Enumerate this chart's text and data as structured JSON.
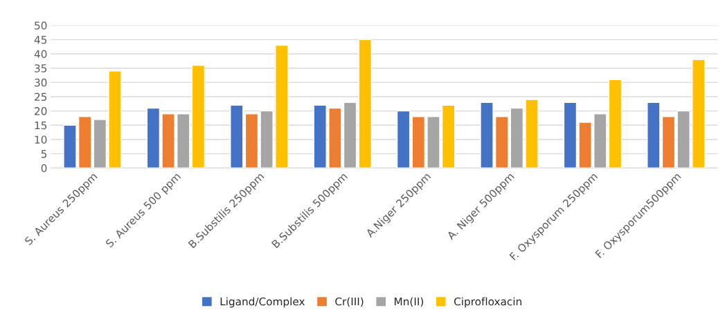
{
  "chart_data": {
    "type": "bar",
    "categories": [
      "S. Aureus 250ppm",
      "S. Aureus 500 ppm",
      "B.Substilis 250ppm",
      "B.Substilis 500ppm",
      "A.Niger 250ppm",
      "A. Niger 500ppm",
      "F. Oxysporum 250ppm",
      "F. Oxysporum500ppm"
    ],
    "series": [
      {
        "name": "Ligand/Complex",
        "color": "#4472c4",
        "values": [
          15,
          21,
          22,
          22,
          20,
          23,
          23,
          23
        ]
      },
      {
        "name": "Cr(III)",
        "color": "#ed7d31",
        "values": [
          18,
          19,
          19,
          21,
          18,
          18,
          16,
          18
        ]
      },
      {
        "name": "Mn(II)",
        "color": "#a5a5a5",
        "values": [
          17,
          19,
          20,
          23,
          18,
          21,
          19,
          20
        ]
      },
      {
        "name": "Ciprofloxacin",
        "color": "#ffc000",
        "values": [
          34,
          36,
          43,
          45,
          22,
          24,
          31,
          38
        ]
      }
    ],
    "ylim": [
      0,
      50
    ],
    "yticks": [
      0,
      5,
      10,
      15,
      20,
      25,
      30,
      35,
      40,
      45,
      50
    ],
    "grid": "y",
    "legend": "bottom"
  }
}
